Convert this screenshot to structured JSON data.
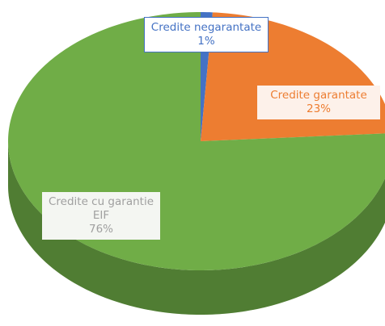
{
  "chart_data": {
    "type": "pie3d",
    "categories": [
      "Credite negarantate",
      "Credite garantate",
      "Credite cu garantie EIF"
    ],
    "values": [
      1,
      23,
      76
    ],
    "value_labels": [
      "1%",
      "23%",
      "76%"
    ],
    "colors": [
      "#4472c4",
      "#ed7d31",
      "#70ad47"
    ]
  }
}
